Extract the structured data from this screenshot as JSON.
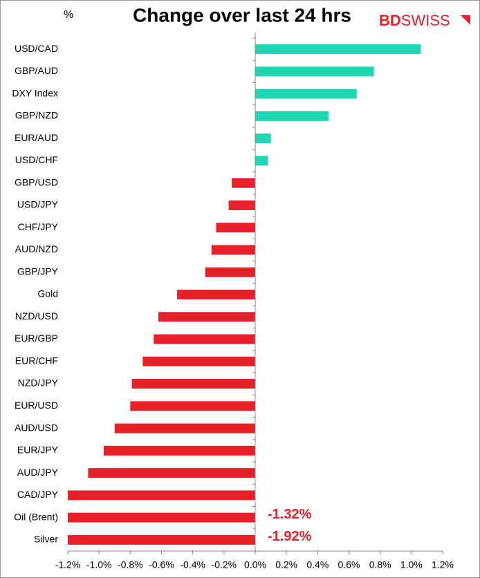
{
  "chart_data": {
    "type": "hbar",
    "title": "Change over last 24 hrs",
    "unit_label": "%",
    "logo": [
      "BD",
      "SWISS"
    ],
    "categories": [
      "USD/CAD",
      "GBP/AUD",
      "DXY Index",
      "GBP/NZD",
      "EUR/AUD",
      "USD/CHF",
      "GBP/USD",
      "USD/JPY",
      "CHF/JPY",
      "AUD/NZD",
      "GBP/JPY",
      "Gold",
      "NZD/USD",
      "EUR/GBP",
      "EUR/CHF",
      "NZD/JPY",
      "EUR/USD",
      "AUD/USD",
      "EUR/JPY",
      "AUD/JPY",
      "CAD/JPY",
      "Oil (Brent)",
      "Silver"
    ],
    "values": [
      1.06,
      0.76,
      0.65,
      0.47,
      0.1,
      0.08,
      -0.15,
      -0.17,
      -0.25,
      -0.28,
      -0.32,
      -0.5,
      -0.62,
      -0.65,
      -0.72,
      -0.79,
      -0.8,
      -0.9,
      -0.97,
      -1.07,
      -1.25,
      -1.32,
      -1.92
    ],
    "value_labels": [
      null,
      null,
      null,
      null,
      null,
      null,
      null,
      null,
      null,
      null,
      null,
      null,
      null,
      null,
      null,
      null,
      null,
      null,
      null,
      null,
      null,
      "-1.32%",
      "-1.92%"
    ],
    "positive_color": "#1fd6b3",
    "negative_color": "#e8202a",
    "xlim": [
      -1.2,
      1.2
    ],
    "xticks": [
      {
        "value": -1.2,
        "label": "-1.2%"
      },
      {
        "value": -1.0,
        "label": "-1.0%"
      },
      {
        "value": -0.8,
        "label": "-0.8%"
      },
      {
        "value": -0.6,
        "label": "-0.6%"
      },
      {
        "value": -0.4,
        "label": "-0.4%"
      },
      {
        "value": -0.2,
        "label": "-0.2%"
      },
      {
        "value": 0,
        "label": "0.0%"
      },
      {
        "value": 0.2,
        "label": "0.2%"
      },
      {
        "value": 0.4,
        "label": "0.4%"
      },
      {
        "value": 0.6,
        "label": "0.6%"
      },
      {
        "value": 0.8,
        "label": "0.8%"
      },
      {
        "value": 1.0,
        "label": "1.0%"
      },
      {
        "value": 1.2,
        "label": "1.2%"
      }
    ]
  }
}
